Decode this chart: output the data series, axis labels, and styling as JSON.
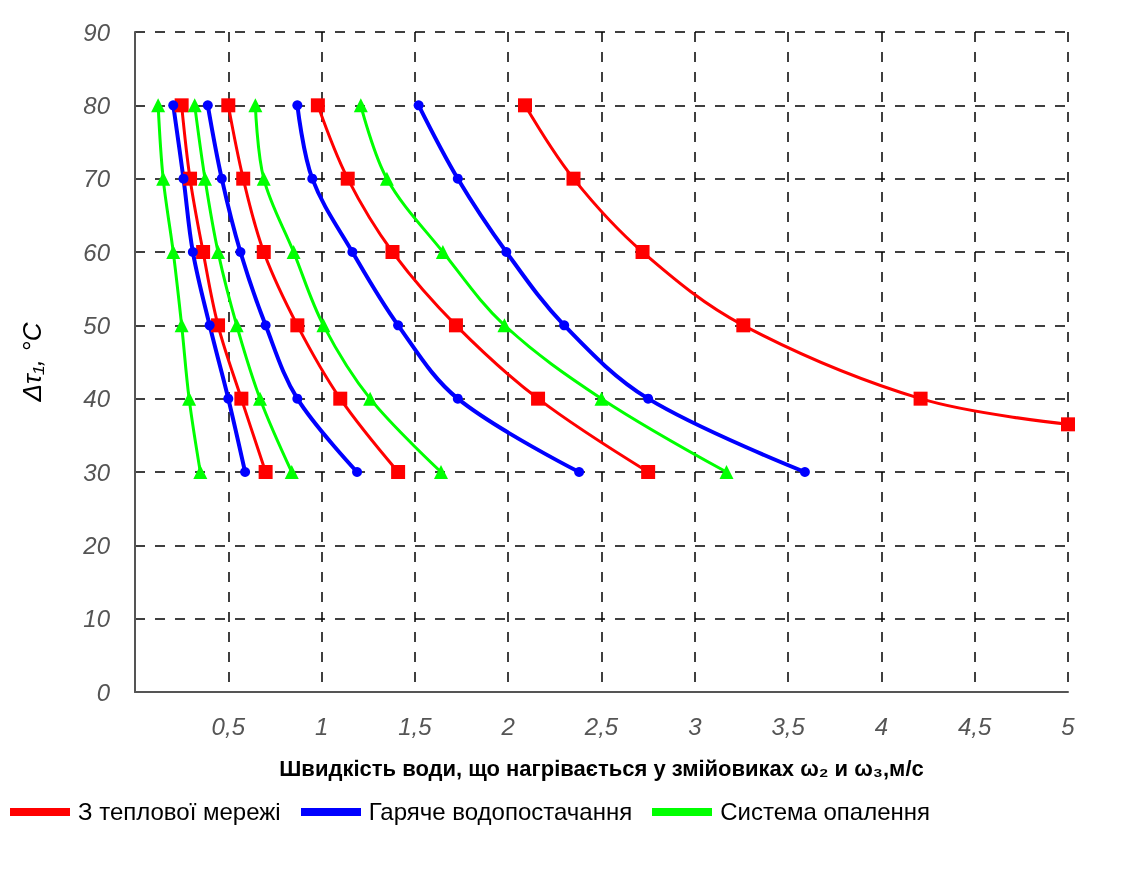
{
  "chart_data": {
    "type": "line",
    "xlabel": "Швидкість води, що нагрівається у змійовиках ω₂ и ω₃,м/с",
    "ylabel": "Δτ₁, °C",
    "xlim": [
      0,
      5
    ],
    "xticks": [
      {
        "value": 0.5,
        "label": "0,5"
      },
      1,
      {
        "value": 1.5,
        "label": "1,5"
      },
      2,
      {
        "value": 2.5,
        "label": "2,5"
      },
      3,
      {
        "value": 3.5,
        "label": "3,5"
      },
      4,
      {
        "value": 4.5,
        "label": "4,5"
      },
      5
    ],
    "ylim": [
      0,
      90
    ],
    "yticks": [
      0,
      10,
      20,
      30,
      40,
      50,
      60,
      70,
      80,
      90
    ],
    "grid": true,
    "legend": "bottom",
    "line_style": "solid",
    "series": [
      {
        "name": "З теплової мережі",
        "color": "#ff0000",
        "marker": "square",
        "x": [
          0.25,
          0.295,
          0.365,
          0.445,
          0.57,
          0.7
        ],
        "values": [
          80,
          70,
          60,
          50,
          40,
          30
        ]
      },
      {
        "color": "#ff0000",
        "marker": "square",
        "x": [
          0.5,
          0.58,
          0.69,
          0.87,
          1.1,
          1.41
        ],
        "values": [
          80,
          70,
          60,
          50,
          40,
          30
        ]
      },
      {
        "color": "#ff0000",
        "marker": "square",
        "x": [
          0.98,
          1.14,
          1.38,
          1.72,
          2.16,
          2.75
        ],
        "values": [
          80,
          70,
          60,
          50,
          40,
          30
        ]
      },
      {
        "color": "#ff0000",
        "marker": "square",
        "x": [
          2.09,
          2.35,
          2.72,
          3.26,
          4.21,
          5
        ],
        "values": [
          80,
          70,
          60,
          50,
          40,
          36.5
        ]
      },
      {
        "name": "Гаряче водопостачання",
        "color": "#0000ff",
        "marker": "circle",
        "x": [
          0.205,
          0.26,
          0.31,
          0.4,
          0.5,
          0.59
        ],
        "values": [
          80,
          70,
          60,
          50,
          40,
          30
        ]
      },
      {
        "color": "#0000ff",
        "marker": "circle",
        "x": [
          0.39,
          0.465,
          0.565,
          0.7,
          0.87,
          1.19
        ],
        "values": [
          80,
          70,
          60,
          50,
          40,
          30
        ]
      },
      {
        "color": "#0000ff",
        "marker": "circle",
        "x": [
          0.87,
          0.95,
          1.165,
          1.41,
          1.73,
          2.38
        ],
        "values": [
          80,
          70,
          60,
          50,
          40,
          30
        ]
      },
      {
        "color": "#0000ff",
        "marker": "circle",
        "x": [
          1.52,
          1.73,
          1.99,
          2.3,
          2.75,
          3.59
        ],
        "values": [
          80,
          70,
          60,
          50,
          40,
          30
        ]
      },
      {
        "name": "Система опалення",
        "color": "#00ff00",
        "marker": "triangle",
        "x": [
          0.124,
          0.151,
          0.205,
          0.25,
          0.29,
          0.35
        ],
        "values": [
          80,
          70,
          60,
          50,
          40,
          30
        ]
      },
      {
        "color": "#00ff00",
        "marker": "triangle",
        "x": [
          0.32,
          0.375,
          0.445,
          0.545,
          0.67,
          0.84
        ],
        "values": [
          80,
          70,
          60,
          50,
          40,
          30
        ]
      },
      {
        "color": "#00ff00",
        "marker": "triangle",
        "x": [
          0.645,
          0.69,
          0.85,
          1.01,
          1.26,
          1.64
        ],
        "values": [
          80,
          70,
          60,
          50,
          40,
          30
        ]
      },
      {
        "color": "#00ff00",
        "marker": "triangle",
        "x": [
          1.21,
          1.35,
          1.65,
          1.98,
          2.5,
          3.17
        ],
        "values": [
          80,
          70,
          60,
          50,
          40,
          30
        ]
      }
    ]
  }
}
